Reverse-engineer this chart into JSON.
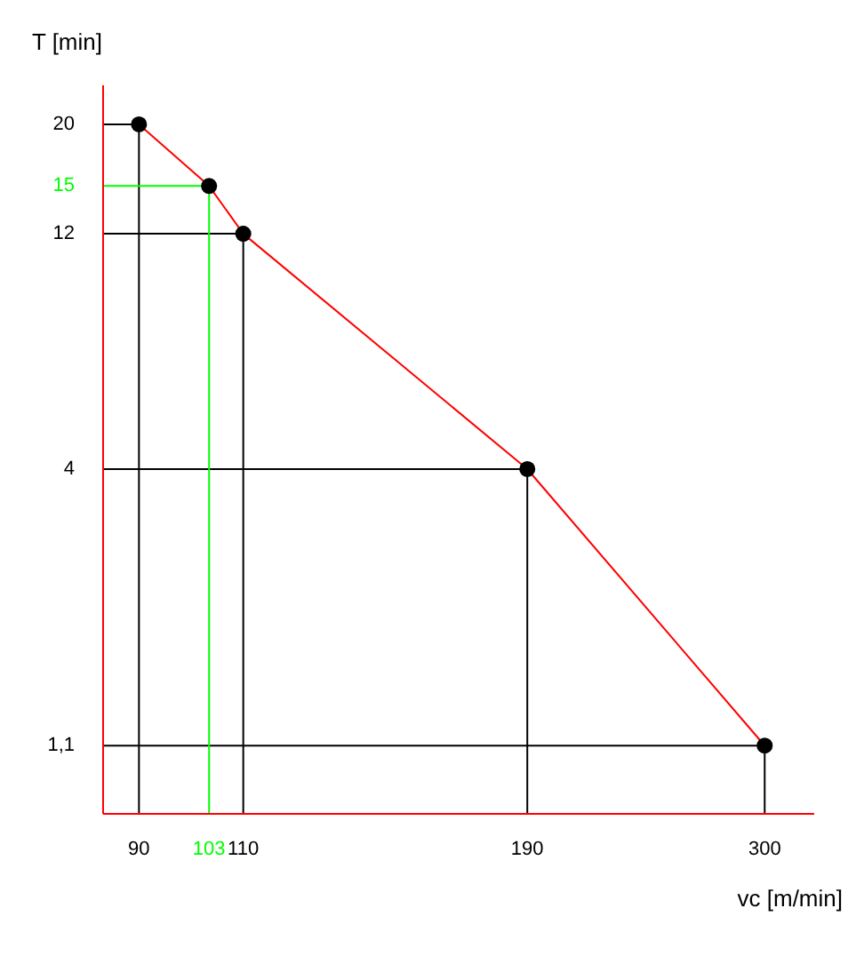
{
  "chart_data": {
    "type": "line",
    "xlabel": "vc [m/min]",
    "ylabel": "T [min]",
    "log": "xy",
    "grid": false,
    "xlim": [
      84,
      330
    ],
    "ylim": [
      0.8,
      24
    ],
    "xticks": [
      90,
      103,
      110,
      190,
      300
    ],
    "yticks": [
      20,
      15,
      12,
      4,
      {
        "value": 1.1,
        "label": "1,1"
      }
    ],
    "series": [
      {
        "color": "#000000",
        "x": [
          84,
          90,
          90
        ],
        "values": [
          20,
          20,
          0.8
        ]
      },
      {
        "color": "#000000",
        "x": [
          84,
          110,
          110
        ],
        "values": [
          12,
          12,
          0.8
        ]
      },
      {
        "color": "#000000",
        "x": [
          84,
          190,
          190
        ],
        "values": [
          4,
          4,
          0.8
        ]
      },
      {
        "color": "#000000",
        "x": [
          84,
          300,
          300
        ],
        "values": [
          1.1,
          1.1,
          0.8
        ]
      },
      {
        "color": "#00ff00",
        "x": [
          84,
          103,
          103
        ],
        "values": [
          15,
          15,
          0.8
        ]
      },
      {
        "color": "#ff0000",
        "x": [
          90,
          103,
          110,
          190,
          300
        ],
        "values": [
          20,
          15,
          12,
          4,
          1.1
        ]
      },
      {
        "type": "scatter",
        "color": "#000000",
        "marker": "circle",
        "x": [
          90,
          103,
          110,
          190,
          300
        ],
        "values": [
          20,
          15,
          12,
          4,
          1.1
        ]
      }
    ]
  }
}
